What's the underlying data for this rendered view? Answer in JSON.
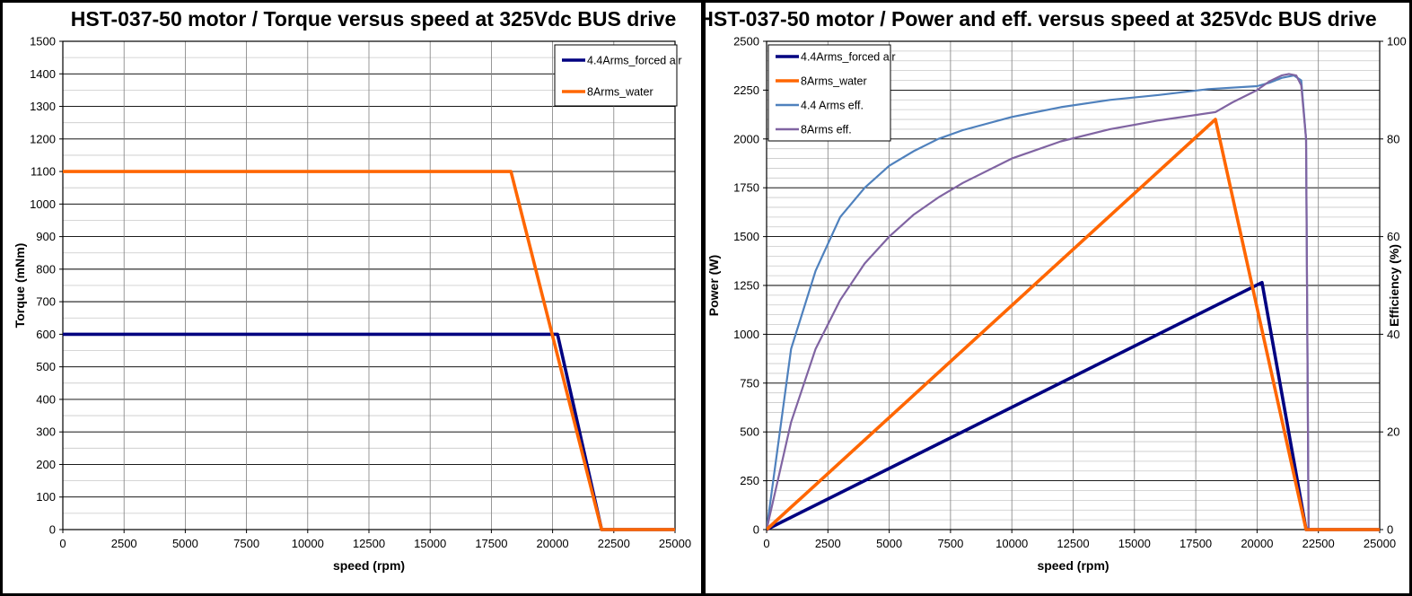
{
  "chart_data": [
    {
      "type": "line",
      "title": "HST-037-50 motor / Torque versus speed at 325Vdc BUS drive",
      "xlabel": "speed (rpm)",
      "ylabel": "Torque (mNm)",
      "xlim": [
        0,
        25000
      ],
      "ylim": [
        0,
        1500
      ],
      "xticks": [
        "0",
        "2500",
        "5000",
        "7500",
        "10000",
        "12500",
        "15000",
        "17500",
        "20000",
        "22500",
        "25000"
      ],
      "yticks": [
        "0",
        "100",
        "200",
        "300",
        "400",
        "500",
        "600",
        "700",
        "800",
        "900",
        "1000",
        "1100",
        "1200",
        "1300",
        "1400",
        "1500"
      ],
      "grid": true,
      "legend_position": "top-right",
      "series": [
        {
          "name": "4.4Arms_forced air",
          "color": "#000080",
          "x": [
            0,
            20200,
            22000,
            25000
          ],
          "y": [
            600,
            600,
            0,
            0
          ]
        },
        {
          "name": "8Arms_water",
          "color": "#FF6600",
          "x": [
            0,
            18300,
            22000,
            25000
          ],
          "y": [
            1100,
            1100,
            0,
            0
          ]
        }
      ]
    },
    {
      "type": "line",
      "title": "HST-037-50 motor / Power and eff. versus speed at 325Vdc BUS drive",
      "xlabel": "speed (rpm)",
      "ylabel": "Power (W)",
      "y2label": "Efficiency (%)",
      "xlim": [
        0,
        25000
      ],
      "ylim": [
        0,
        2500
      ],
      "y2lim": [
        0,
        100
      ],
      "xticks": [
        "0",
        "2500",
        "5000",
        "7500",
        "10000",
        "12500",
        "15000",
        "17500",
        "20000",
        "22500",
        "25000"
      ],
      "yticks": [
        "0",
        "250",
        "500",
        "750",
        "1000",
        "1250",
        "1500",
        "1750",
        "2000",
        "2250",
        "2500"
      ],
      "y2ticks": [
        "0",
        "20",
        "40",
        "60",
        "80",
        "100"
      ],
      "grid": true,
      "legend_position": "top-left",
      "series": [
        {
          "name": "4.4Arms_forced air",
          "color": "#000080",
          "axis": "left",
          "x": [
            0,
            20200,
            22000,
            25000
          ],
          "y": [
            0,
            1265,
            0,
            0
          ]
        },
        {
          "name": "8Arms_water",
          "color": "#FF6600",
          "axis": "left",
          "x": [
            0,
            18300,
            22000,
            25000
          ],
          "y": [
            0,
            2100,
            0,
            0
          ]
        },
        {
          "name": "4.4 Arms eff.",
          "color": "#4F81BD",
          "axis": "right",
          "x": [
            0,
            1000,
            2000,
            3000,
            4000,
            5000,
            6000,
            7000,
            8000,
            10000,
            12000,
            14000,
            16000,
            18000,
            20000,
            20500,
            21000,
            21500,
            21800,
            22000,
            22100
          ],
          "y": [
            0,
            37,
            53,
            64,
            70,
            74.5,
            77.5,
            80,
            81.8,
            84.5,
            86.5,
            88,
            89,
            90.2,
            90.8,
            91.5,
            92.5,
            93,
            92,
            80,
            0
          ]
        },
        {
          "name": "8Arms eff.",
          "color": "#8064A2",
          "axis": "right",
          "x": [
            0,
            1000,
            2000,
            3000,
            4000,
            5000,
            6000,
            7000,
            8000,
            10000,
            12000,
            14000,
            16000,
            18300,
            19000,
            20000,
            20500,
            21000,
            21300,
            21600,
            21800,
            22000,
            22100
          ],
          "y": [
            0,
            22,
            37,
            47,
            54.5,
            60,
            64.5,
            68,
            71,
            76,
            79.5,
            82,
            83.8,
            85.5,
            87.5,
            90,
            91.8,
            93,
            93.3,
            93,
            91,
            80,
            0
          ]
        }
      ]
    }
  ]
}
